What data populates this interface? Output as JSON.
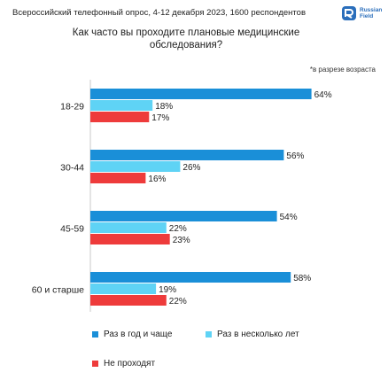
{
  "header": {
    "subtitle": "Всероссийский телефонный опрос, 4-12 декабря 2023, 1600 респондентов",
    "logo_line1": "Russian",
    "logo_line2": "Field"
  },
  "note": "*в разрезе возраста",
  "chart_data": {
    "type": "bar",
    "orientation": "horizontal",
    "title": "Как часто вы проходите плановые медицинские обследования?",
    "categories": [
      "18-29",
      "30-44",
      "45-59",
      "60 и старше"
    ],
    "series": [
      {
        "name": "Раз в год и чаще",
        "color": "#1a8fd8",
        "values": [
          64,
          56,
          54,
          58
        ],
        "labels": [
          "64%",
          "56%",
          "54%",
          "58%"
        ]
      },
      {
        "name": "Раз в несколько лет",
        "color": "#5fd3f5",
        "values": [
          18,
          26,
          22,
          19
        ],
        "labels": [
          "18%",
          "26%",
          "22%",
          "19%"
        ]
      },
      {
        "name": "Не проходят",
        "color": "#ee3b3b",
        "values": [
          17,
          16,
          23,
          22
        ],
        "labels": [
          "17%",
          "16%",
          "23%",
          "22%"
        ]
      }
    ],
    "xlim": [
      0,
      100
    ],
    "legend_position": "bottom",
    "grid": false
  }
}
